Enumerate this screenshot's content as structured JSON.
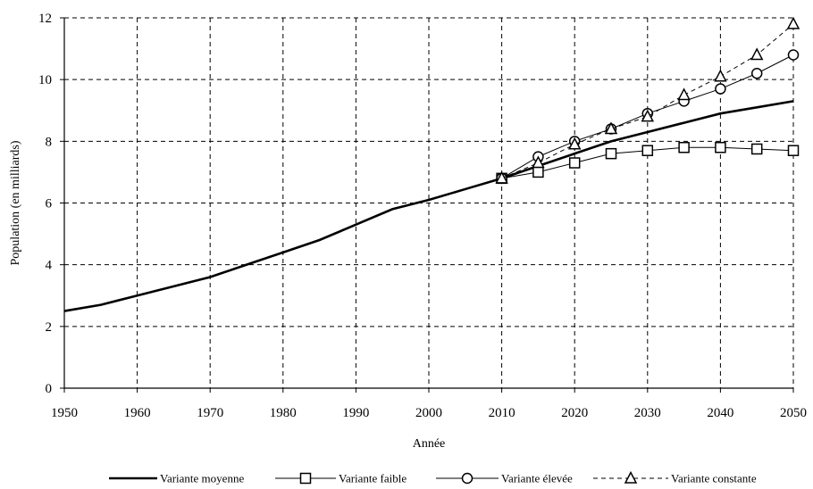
{
  "chart_data": {
    "type": "line",
    "title": "",
    "xlabel": "Année",
    "ylabel": "Population (en milliards)",
    "xlim": [
      1950,
      2050
    ],
    "ylim": [
      0,
      12
    ],
    "xticks": [
      1950,
      1960,
      1970,
      1980,
      1990,
      2000,
      2010,
      2020,
      2030,
      2040,
      2050
    ],
    "yticks": [
      0,
      2,
      4,
      6,
      8,
      10,
      12
    ],
    "grid": true,
    "legend_position": "bottom",
    "series": [
      {
        "name": "Variante moyenne",
        "line": "solid-thick",
        "marker": "none",
        "color": "#000000",
        "x": [
          1950,
          1955,
          1960,
          1965,
          1970,
          1975,
          1980,
          1985,
          1990,
          1995,
          2000,
          2005,
          2010,
          2015,
          2020,
          2025,
          2030,
          2035,
          2040,
          2045,
          2050
        ],
        "y": [
          2.5,
          2.7,
          3.0,
          3.3,
          3.6,
          4.0,
          4.4,
          4.8,
          5.3,
          5.8,
          6.1,
          6.45,
          6.8,
          7.2,
          7.6,
          8.0,
          8.3,
          8.6,
          8.9,
          9.1,
          9.3
        ]
      },
      {
        "name": "Variante faible",
        "line": "solid",
        "marker": "square",
        "color": "#000000",
        "x": [
          2010,
          2015,
          2020,
          2025,
          2030,
          2035,
          2040,
          2045,
          2050
        ],
        "y": [
          6.8,
          7.0,
          7.3,
          7.6,
          7.7,
          7.8,
          7.8,
          7.75,
          7.7
        ]
      },
      {
        "name": "Variante élevée",
        "line": "solid",
        "marker": "circle",
        "color": "#000000",
        "x": [
          2010,
          2015,
          2020,
          2025,
          2030,
          2035,
          2040,
          2045,
          2050
        ],
        "y": [
          6.8,
          7.5,
          8.0,
          8.4,
          8.9,
          9.3,
          9.7,
          10.2,
          10.8
        ]
      },
      {
        "name": "Variante constante",
        "line": "dashed",
        "marker": "triangle",
        "color": "#000000",
        "x": [
          2010,
          2015,
          2020,
          2025,
          2030,
          2035,
          2040,
          2045,
          2050
        ],
        "y": [
          6.8,
          7.3,
          7.9,
          8.4,
          8.8,
          9.5,
          10.1,
          10.8,
          11.8
        ]
      }
    ]
  }
}
